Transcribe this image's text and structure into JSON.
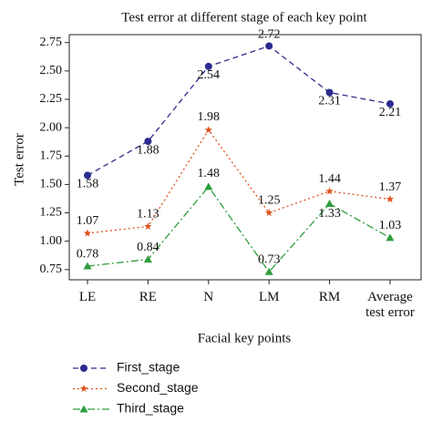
{
  "chart_data": {
    "type": "line",
    "title": "Test error at different stage of each key point",
    "x_label": "Facial key points",
    "y_label": "Test error",
    "categories": [
      "LE",
      "RE",
      "N",
      "LM",
      "RM",
      "Average test error"
    ],
    "series": [
      {
        "name": "First_stage",
        "color": "#2b2b8f",
        "values": [
          1.58,
          1.88,
          2.54,
          2.72,
          2.31,
          2.21
        ]
      },
      {
        "name": "Second_stage",
        "color": "#e0501a",
        "values": [
          1.07,
          1.13,
          1.98,
          1.25,
          1.44,
          1.37
        ]
      },
      {
        "name": "Third_stage",
        "color": "#2e9e3e",
        "values": [
          0.78,
          0.84,
          1.48,
          0.73,
          1.33,
          1.03
        ]
      }
    ],
    "ylim": [
      0.66,
      2.82
    ],
    "yticks": [
      0.75,
      1.0,
      1.25,
      1.5,
      1.75,
      2.0,
      2.25,
      2.5,
      2.75
    ],
    "grid": false
  }
}
